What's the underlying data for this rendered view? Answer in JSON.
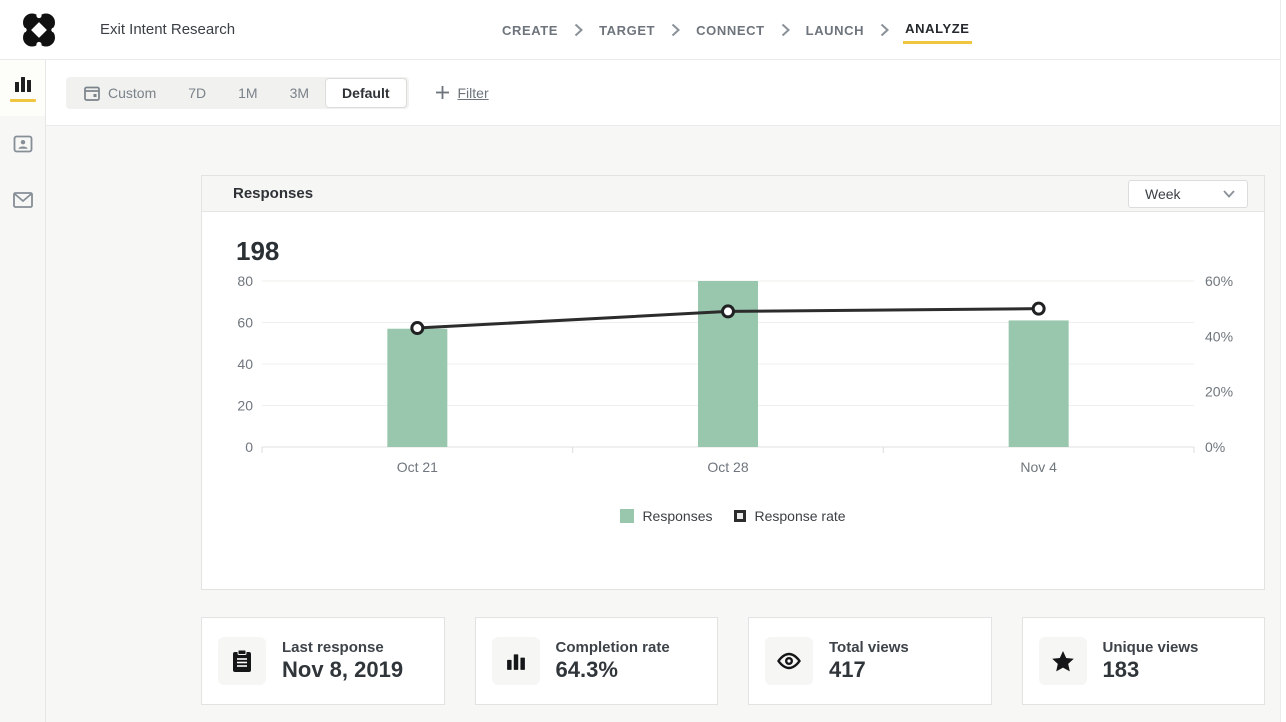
{
  "header": {
    "title": "Exit Intent Research",
    "steps": [
      {
        "label": "CREATE",
        "active": false
      },
      {
        "label": "TARGET",
        "active": false
      },
      {
        "label": "CONNECT",
        "active": false
      },
      {
        "label": "LAUNCH",
        "active": false
      },
      {
        "label": "ANALYZE",
        "active": true
      }
    ]
  },
  "sidebar": {
    "items": [
      {
        "icon": "bar-chart-icon",
        "active": true
      },
      {
        "icon": "contact-card-icon",
        "active": false
      },
      {
        "icon": "envelope-icon",
        "active": false
      }
    ]
  },
  "toolbar": {
    "ranges": [
      {
        "label": "Custom",
        "icon": "calendar-icon",
        "selected": false
      },
      {
        "label": "7D",
        "selected": false
      },
      {
        "label": "1M",
        "selected": false
      },
      {
        "label": "3M",
        "selected": false
      },
      {
        "label": "Default",
        "selected": true
      }
    ],
    "filter_label": "Filter"
  },
  "chart_card": {
    "title": "Responses",
    "period_select": {
      "value": "Week"
    },
    "total": "198"
  },
  "chart_data": {
    "type": "bar",
    "categories": [
      "Oct 21",
      "Oct 28",
      "Nov 4"
    ],
    "series": [
      {
        "name": "Responses",
        "type": "bar",
        "axis": "left",
        "color": "#99c7ad",
        "values": [
          57,
          80,
          61
        ]
      },
      {
        "name": "Response rate",
        "type": "line",
        "axis": "right",
        "color": "#2c2c2c",
        "unit": "%",
        "values": [
          43,
          49,
          50
        ]
      }
    ],
    "title": "Responses",
    "xlabel": "",
    "ylabel": "",
    "left_axis": {
      "ticks": [
        0,
        20,
        40,
        60,
        80
      ],
      "range": [
        0,
        80
      ]
    },
    "right_axis": {
      "ticks": [
        0,
        20,
        40,
        60
      ],
      "range": [
        0,
        60
      ],
      "unit": "%"
    },
    "grid": true,
    "legend_position": "bottom",
    "legend": [
      "Responses",
      "Response rate"
    ]
  },
  "stats": [
    {
      "icon": "clipboard-icon",
      "label": "Last response",
      "value": "Nov 8, 2019"
    },
    {
      "icon": "bar-chart-icon",
      "label": "Completion rate",
      "value": "64.3%"
    },
    {
      "icon": "eye-icon",
      "label": "Total views",
      "value": "417"
    },
    {
      "icon": "star-icon",
      "label": "Unique views",
      "value": "183"
    }
  ],
  "colors": {
    "accent_yellow": "#f0c640",
    "bar_green": "#99c7ad",
    "line_dark": "#2c2c2c",
    "axis_text": "#6f767d"
  }
}
